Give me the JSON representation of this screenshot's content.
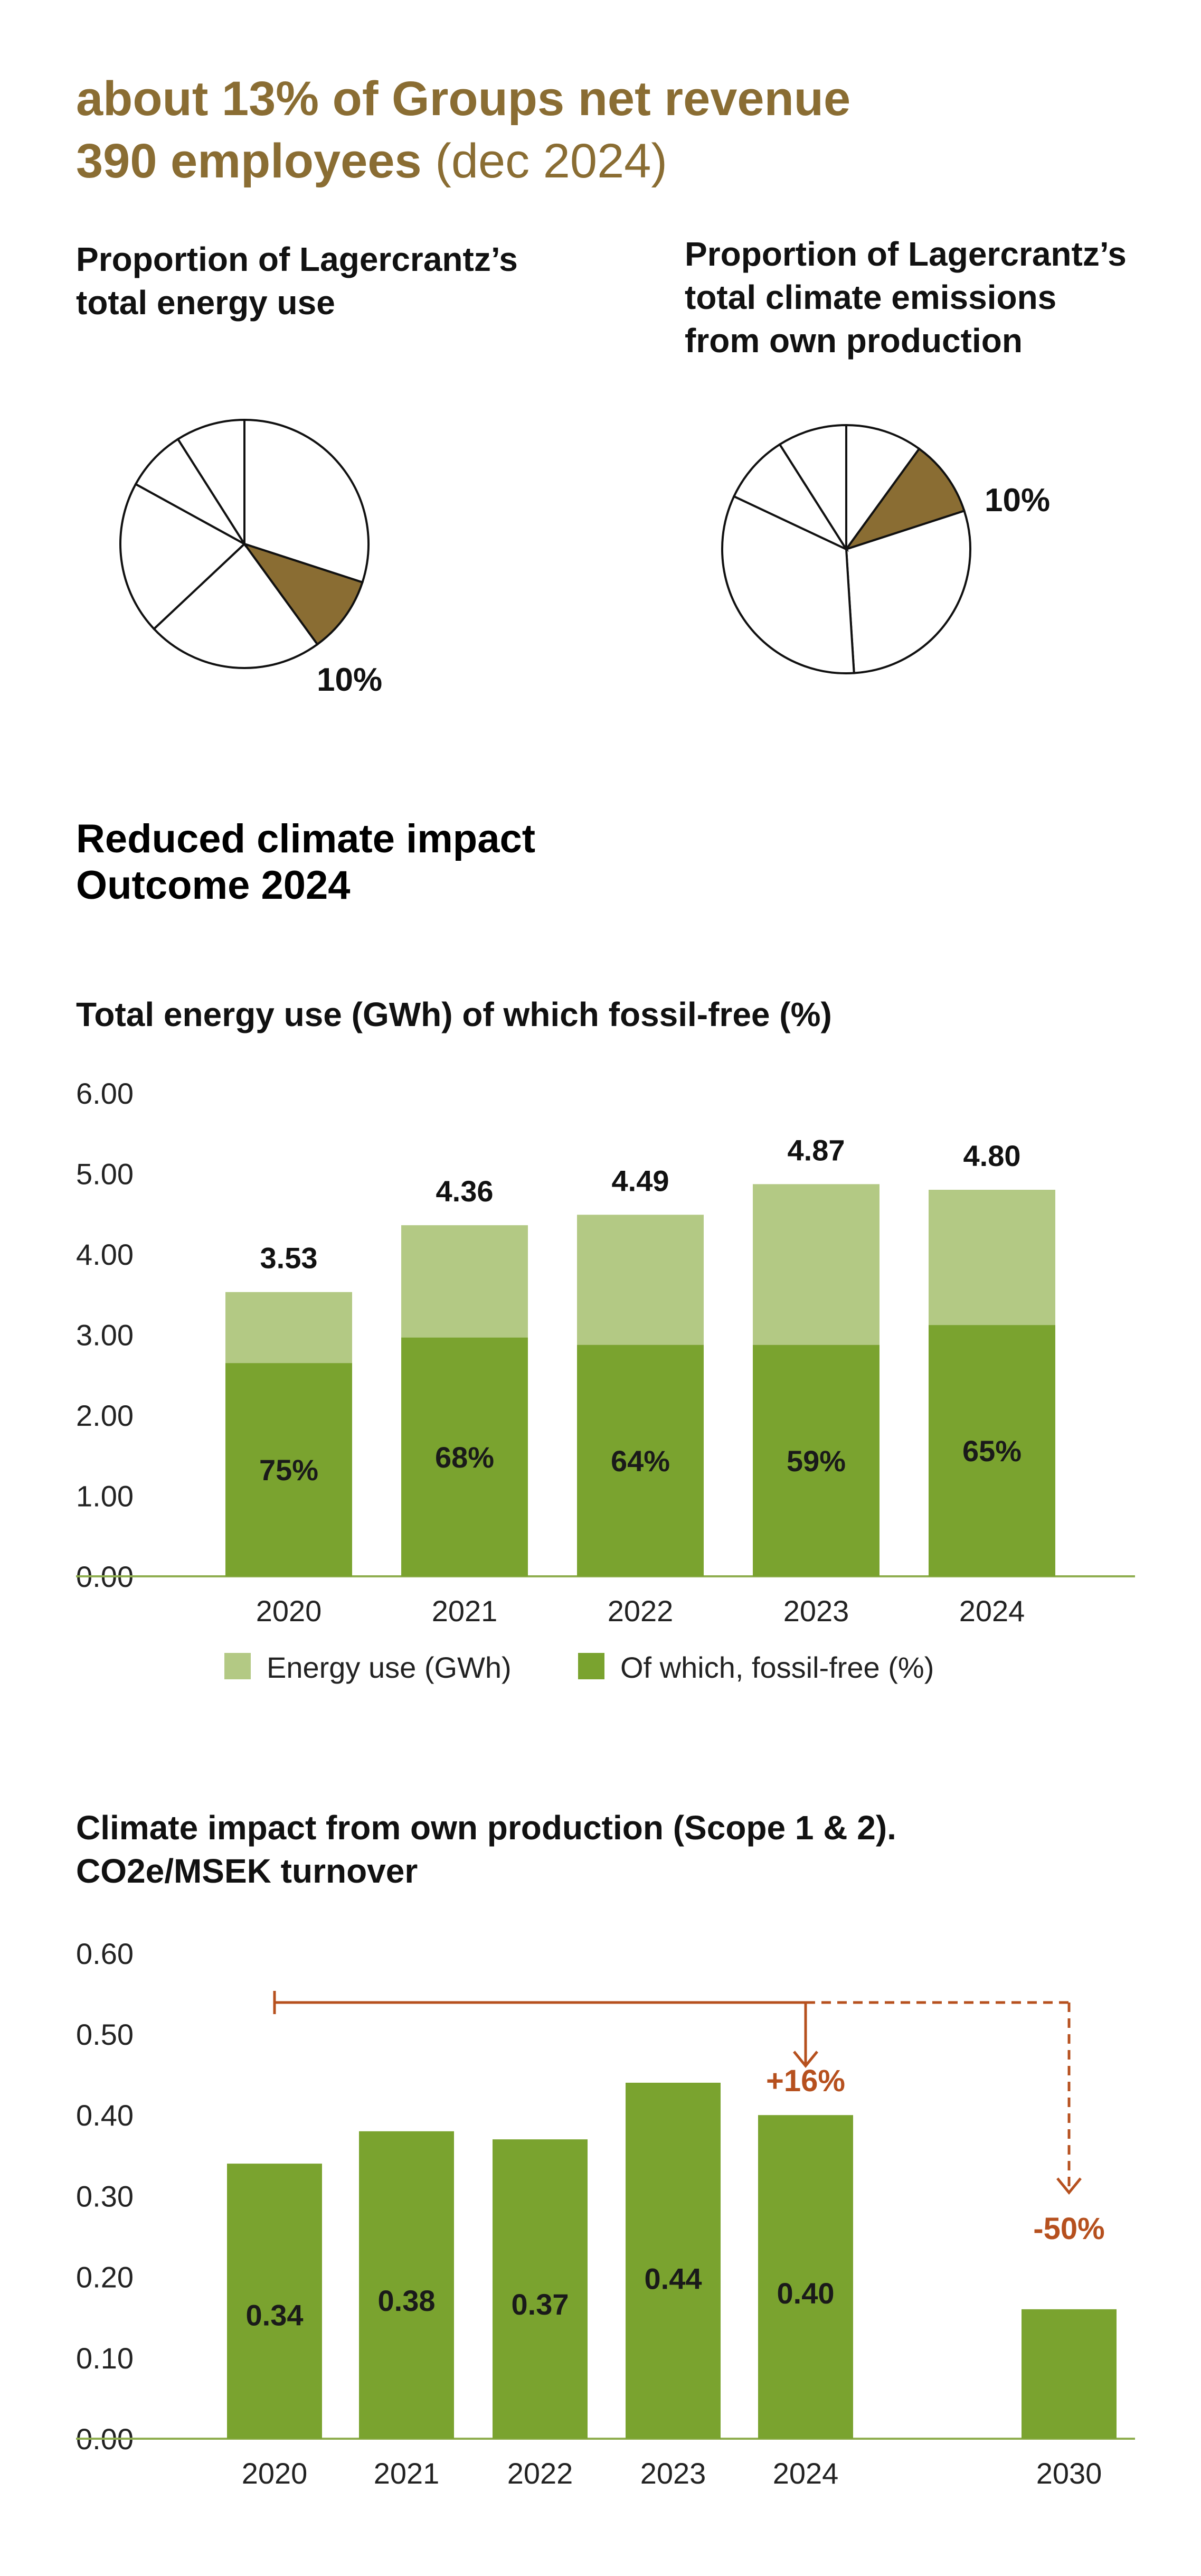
{
  "header": {
    "line1": "about 13% of Groups net revenue",
    "line2_bold": "390 employees",
    "line2_light": " (dec 2024)"
  },
  "pie_titles": {
    "left": [
      "Proportion of Lagercrantz’s",
      "total energy use"
    ],
    "right": [
      "Proportion of Lagercrantz’s",
      "total climate emissions",
      "from own production"
    ]
  },
  "section_title": [
    "Reduced climate impact",
    "Outcome 2024"
  ],
  "colors": {
    "brown": "#8a6d33",
    "light_green": "#b3c984",
    "dark_green": "#7aa32f",
    "orange": "#b6501e",
    "axis": "#8fae4f"
  },
  "chart_data": [
    {
      "type": "pie",
      "title": "Proportion of Lagercrantz’s total energy use",
      "slices": [
        30,
        10,
        23,
        20,
        8,
        9
      ],
      "highlight_index": 1,
      "highlight_label": "10%"
    },
    {
      "type": "pie",
      "title": "Proportion of Lagercrantz’s total climate emissions from own production",
      "slices": [
        10,
        10,
        29,
        33,
        9,
        9
      ],
      "highlight_index": 1,
      "highlight_label": "10%"
    },
    {
      "type": "bar",
      "title": "Total energy use (GWh) of which fossil-free (%)",
      "categories": [
        "2020",
        "2021",
        "2022",
        "2023",
        "2024"
      ],
      "series": [
        {
          "name": "Energy use (GWh)",
          "values": [
            3.53,
            4.36,
            4.49,
            4.87,
            4.8
          ],
          "labels": [
            "3.53",
            "4.36",
            "4.49",
            "4.87",
            "4.80"
          ]
        },
        {
          "name": "Of which, fossil-free (%)",
          "values": [
            75,
            68,
            64,
            59,
            65
          ],
          "labels": [
            "75%",
            "68%",
            "64%",
            "59%",
            "65%"
          ]
        }
      ],
      "ylim": [
        0,
        6
      ],
      "yticks": [
        "0.00",
        "1.00",
        "2.00",
        "3.00",
        "4.00",
        "5.00",
        "6.00"
      ]
    },
    {
      "type": "bar",
      "title": [
        "Climate impact from own production (Scope 1 & 2).",
        "CO2e/MSEK turnover"
      ],
      "categories": [
        "2020",
        "2021",
        "2022",
        "2023",
        "2024",
        "2030"
      ],
      "values": [
        0.34,
        0.38,
        0.37,
        0.44,
        0.4,
        0.16
      ],
      "value_labels": [
        "0.34",
        "0.38",
        "0.37",
        "0.44",
        "0.40",
        ""
      ],
      "ylim": [
        0,
        0.6
      ],
      "yticks": [
        "0.00",
        "0.10",
        "0.20",
        "0.30",
        "0.40",
        "0.50",
        "0.60"
      ],
      "annotations": {
        "change_2024": "+16%",
        "target_2030": "-50%"
      }
    }
  ]
}
